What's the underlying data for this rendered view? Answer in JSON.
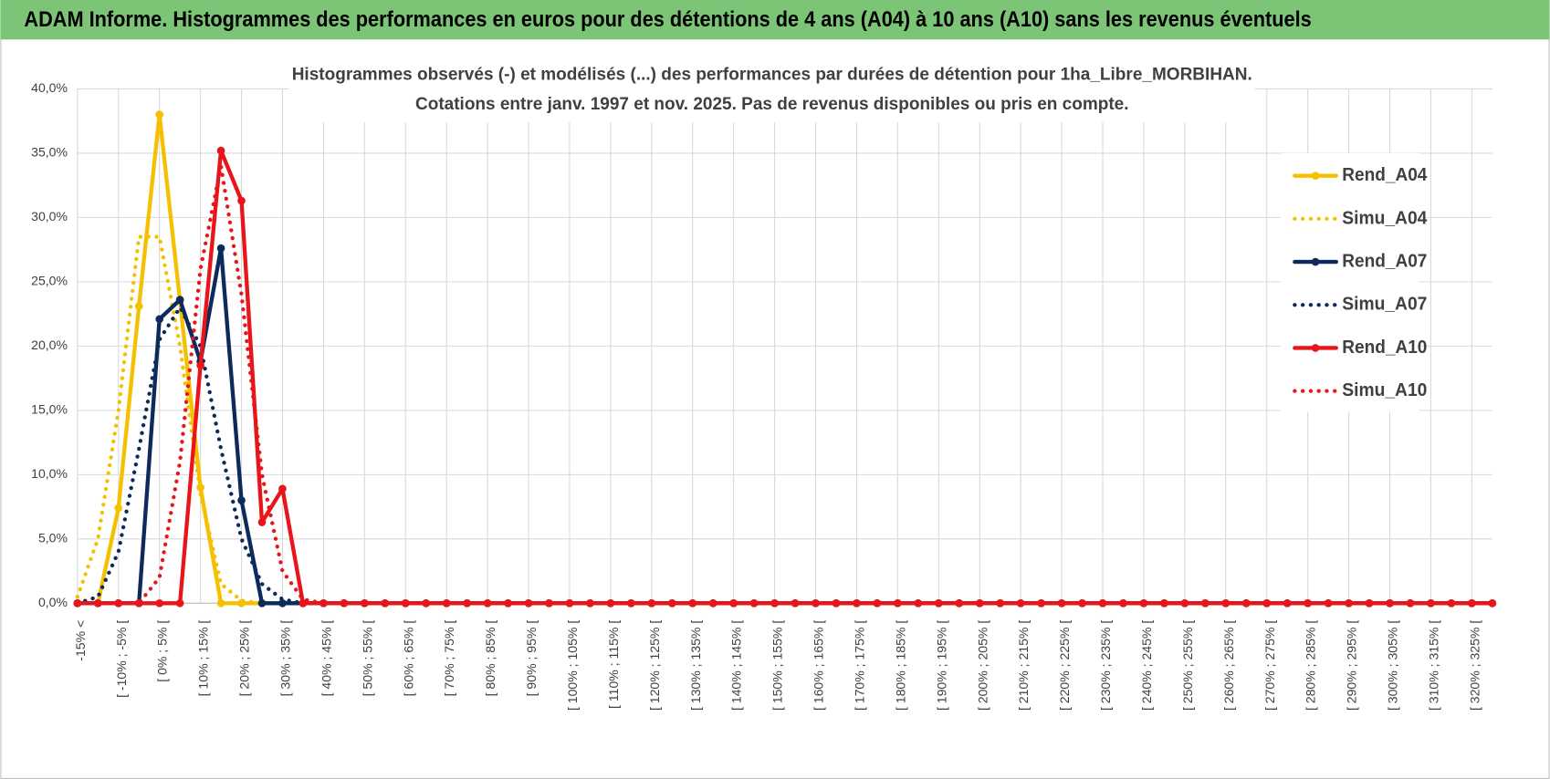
{
  "header": {
    "title": "ADAM Informe. Histogrammes des performances en euros pour des détentions de 4 ans (A04) à 10 ans (A10) sans les revenus éventuels"
  },
  "chart_data": {
    "type": "line",
    "title": "Histogrammes observés (-) et modélisés (...) des performances par durées de détention pour 1ha_Libre_MORBIHAN.",
    "subtitle": "Cotations entre janv. 1997 et nov. 2025. Pas de revenus disponibles ou pris en compte.",
    "categories": [
      "-15% <",
      null,
      "[ -10% ; -5% [",
      null,
      "[ 0% ; 5% [",
      null,
      "[ 10% ; 15% [",
      null,
      "[ 20% ; 25% [",
      null,
      "[ 30% ; 35% [",
      null,
      "[ 40% ; 45% [",
      null,
      "[ 50% ; 55% [",
      null,
      "[ 60% ; 65% [",
      null,
      "[ 70% ; 75% [",
      null,
      "[ 80% ; 85% [",
      null,
      "[ 90% ; 95% [",
      null,
      "[ 100% ; 105% [",
      null,
      "[ 110% ; 115% [",
      null,
      "[ 120% ; 125% [",
      null,
      "[ 130% ; 135% [",
      null,
      "[ 140% ; 145% [",
      null,
      "[ 150% ; 155% [",
      null,
      "[ 160% ; 165% [",
      null,
      "[ 170% ; 175% [",
      null,
      "[ 180% ; 185% [",
      null,
      "[ 190% ; 195% [",
      null,
      "[ 200% ; 205% [",
      null,
      "[ 210% ; 215% [",
      null,
      "[ 220% ; 225% [",
      null,
      "[ 230% ; 235% [",
      null,
      "[ 240% ; 245% [",
      null,
      "[ 250% ; 255% [",
      null,
      "[ 260% ; 265% [",
      null,
      "[ 270% ; 275% [",
      null,
      "[ 280% ; 285% [",
      null,
      "[ 290% ; 295% [",
      null,
      "[ 300% ; 305% [",
      null,
      "[ 310% ; 315% [",
      null,
      "[ 320% ; 325% [",
      null
    ],
    "series": [
      {
        "name": "Rend_A04",
        "color": "#f5c000",
        "style": "solid",
        "marker": true,
        "values": [
          0,
          0,
          7.4,
          23.1,
          38,
          23.5,
          9,
          0,
          0,
          0,
          0,
          0,
          0,
          0,
          0,
          0,
          0,
          0,
          0,
          0,
          0,
          0,
          0,
          0,
          0,
          0,
          0,
          0,
          0,
          0,
          0,
          0,
          0,
          0,
          0,
          0,
          0,
          0,
          0,
          0,
          0,
          0,
          0,
          0,
          0,
          0,
          0,
          0,
          0,
          0,
          0,
          0,
          0,
          0,
          0,
          0,
          0,
          0,
          0,
          0,
          0,
          0,
          0,
          0,
          0,
          0,
          0,
          0,
          0,
          0
        ]
      },
      {
        "name": "Simu_A04",
        "color": "#f5c000",
        "style": "dotted",
        "marker": false,
        "values": [
          0.5,
          5,
          15,
          28.5,
          28.5,
          20,
          8.5,
          1.5,
          0.2,
          0,
          0,
          0,
          0,
          0,
          0,
          0,
          0,
          0,
          0,
          0,
          0,
          0,
          0,
          0,
          0,
          0,
          0,
          0,
          0,
          0,
          0,
          0,
          0,
          0,
          0,
          0,
          0,
          0,
          0,
          0,
          0,
          0,
          0,
          0,
          0,
          0,
          0,
          0,
          0,
          0,
          0,
          0,
          0,
          0,
          0,
          0,
          0,
          0,
          0,
          0,
          0,
          0,
          0,
          0,
          0,
          0,
          0,
          0,
          0,
          0
        ]
      },
      {
        "name": "Rend_A07",
        "color": "#0d2a5c",
        "style": "solid",
        "marker": true,
        "values": [
          0,
          0,
          0,
          0,
          22.1,
          23.6,
          18.8,
          27.6,
          8,
          0,
          0,
          0,
          0,
          0,
          0,
          0,
          0,
          0,
          0,
          0,
          0,
          0,
          0,
          0,
          0,
          0,
          0,
          0,
          0,
          0,
          0,
          0,
          0,
          0,
          0,
          0,
          0,
          0,
          0,
          0,
          0,
          0,
          0,
          0,
          0,
          0,
          0,
          0,
          0,
          0,
          0,
          0,
          0,
          0,
          0,
          0,
          0,
          0,
          0,
          0,
          0,
          0,
          0,
          0,
          0,
          0,
          0,
          0,
          0,
          0
        ]
      },
      {
        "name": "Simu_A07",
        "color": "#0d2a5c",
        "style": "dotted",
        "marker": false,
        "values": [
          0,
          0.5,
          4,
          12,
          20.5,
          23,
          20,
          12,
          5,
          1.5,
          0.3,
          0,
          0,
          0,
          0,
          0,
          0,
          0,
          0,
          0,
          0,
          0,
          0,
          0,
          0,
          0,
          0,
          0,
          0,
          0,
          0,
          0,
          0,
          0,
          0,
          0,
          0,
          0,
          0,
          0,
          0,
          0,
          0,
          0,
          0,
          0,
          0,
          0,
          0,
          0,
          0,
          0,
          0,
          0,
          0,
          0,
          0,
          0,
          0,
          0,
          0,
          0,
          0,
          0,
          0,
          0,
          0,
          0,
          0,
          0
        ]
      },
      {
        "name": "Rend_A10",
        "color": "#e8151b",
        "style": "solid",
        "marker": true,
        "values": [
          0,
          0,
          0,
          0,
          0,
          0,
          18.5,
          35.2,
          31.3,
          6.3,
          8.9,
          0,
          0,
          0,
          0,
          0,
          0,
          0,
          0,
          0,
          0,
          0,
          0,
          0,
          0,
          0,
          0,
          0,
          0,
          0,
          0,
          0,
          0,
          0,
          0,
          0,
          0,
          0,
          0,
          0,
          0,
          0,
          0,
          0,
          0,
          0,
          0,
          0,
          0,
          0,
          0,
          0,
          0,
          0,
          0,
          0,
          0,
          0,
          0,
          0,
          0,
          0,
          0,
          0,
          0,
          0,
          0,
          0,
          0,
          0
        ]
      },
      {
        "name": "Simu_A10",
        "color": "#e8151b",
        "style": "dotted",
        "marker": false,
        "values": [
          0,
          0,
          0,
          0,
          2,
          11,
          26,
          34,
          24,
          10,
          2.5,
          0.3,
          0,
          0,
          0,
          0,
          0,
          0,
          0,
          0,
          0,
          0,
          0,
          0,
          0,
          0,
          0,
          0,
          0,
          0,
          0,
          0,
          0,
          0,
          0,
          0,
          0,
          0,
          0,
          0,
          0,
          0,
          0,
          0,
          0,
          0,
          0,
          0,
          0,
          0,
          0,
          0,
          0,
          0,
          0,
          0,
          0,
          0,
          0,
          0,
          0,
          0,
          0,
          0,
          0,
          0,
          0,
          0,
          0,
          0
        ]
      }
    ],
    "ylim": [
      0,
      40
    ],
    "yticks": [
      {
        "value": 0,
        "label": "0,0%"
      },
      {
        "value": 5,
        "label": "5,0%"
      },
      {
        "value": 10,
        "label": "10,0%"
      },
      {
        "value": 15,
        "label": "15,0%"
      },
      {
        "value": 20,
        "label": "20,0%"
      },
      {
        "value": 25,
        "label": "25,0%"
      },
      {
        "value": 30,
        "label": "30,0%"
      },
      {
        "value": 35,
        "label": "35,0%"
      },
      {
        "value": 40,
        "label": "40,0%"
      }
    ],
    "grid": true,
    "legend": "right"
  }
}
